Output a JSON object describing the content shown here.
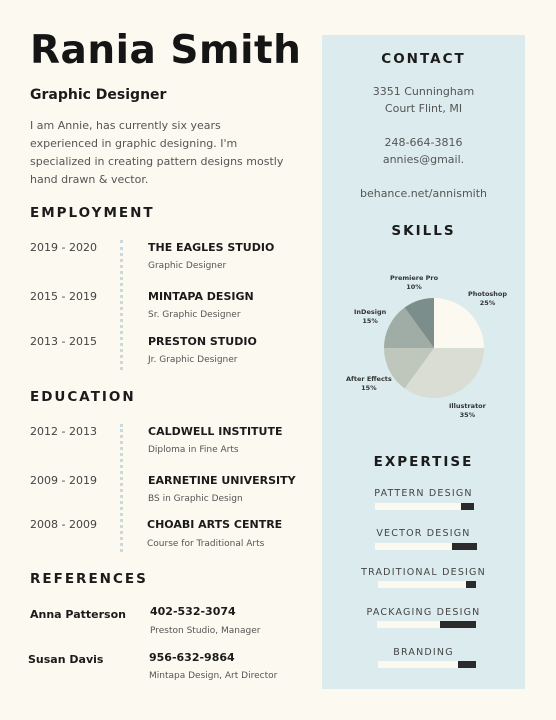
{
  "name": "Rania Smith",
  "role": "Graphic Designer",
  "intro": "I am Annie, has currently six years experienced in graphic designing. I'm specialized in creating pattern designs mostly hand drawn & vector.",
  "employment": {
    "heading": "EMPLOYMENT",
    "items": [
      {
        "years": "2019 - 2020",
        "org": "THE EAGLES STUDIO",
        "title": "Graphic Designer"
      },
      {
        "years": "2015 - 2019",
        "org": "MINTAPA DESIGN",
        "title": "Sr. Graphic Designer"
      },
      {
        "years": "2013 - 2015",
        "org": "PRESTON STUDIO",
        "title": "Jr. Graphic Designer"
      }
    ]
  },
  "education": {
    "heading": "EDUCATION",
    "items": [
      {
        "years": "2012 - 2013",
        "org": "CALDWELL INSTITUTE",
        "title": "Diploma in Fine Arts"
      },
      {
        "years": "2009 - 2019",
        "org": "EARNETINE UNIVERSITY",
        "title": "BS in Graphic Design"
      },
      {
        "years": "2008 - 2009",
        "org": "CHOABI ARTS CENTRE",
        "title": "Course for Traditional Arts"
      }
    ]
  },
  "references": {
    "heading": "REFERENCES",
    "items": [
      {
        "name": "Anna Patterson",
        "phone": "402-532-3074",
        "detail": "Preston Studio, Manager"
      },
      {
        "name": "Susan Davis",
        "phone": "956-632-9864",
        "detail": "Mintapa Design, Art Director"
      }
    ]
  },
  "contact": {
    "heading": "CONTACT",
    "address_line1": "3351 Cunningham",
    "address_line2": "Court Flint, MI",
    "phone": "248-664-3816",
    "email": "annies@gmail.",
    "website": "behance.net/annismith"
  },
  "skills": {
    "heading": "SKILLS"
  },
  "chart_data": {
    "type": "pie",
    "title": "SKILLS",
    "slices": [
      {
        "label": "Photoshop",
        "value": 25,
        "display": "25%",
        "color": "#fbf9f0"
      },
      {
        "label": "Illustrator",
        "value": 35,
        "display": "35%",
        "color": "#d9ddd3"
      },
      {
        "label": "After Effects",
        "value": 15,
        "display": "15%",
        "color": "#bfc6bb"
      },
      {
        "label": "InDesign",
        "value": 15,
        "display": "15%",
        "color": "#9fada6"
      },
      {
        "label": "Premiere Pro",
        "value": 10,
        "display": "10%",
        "color": "#7c8e8b"
      }
    ]
  },
  "expertise": {
    "heading": "EXPERTISE",
    "items": [
      {
        "label": "PATTERN DESIGN",
        "level": 0.13
      },
      {
        "label": "VECTOR DESIGN",
        "level": 0.25
      },
      {
        "label": "TRADITIONAL DESIGN",
        "level": 0.1
      },
      {
        "label": "PACKAGING DESIGN",
        "level": 0.36
      },
      {
        "label": "BRANDING",
        "level": 0.18
      }
    ]
  }
}
